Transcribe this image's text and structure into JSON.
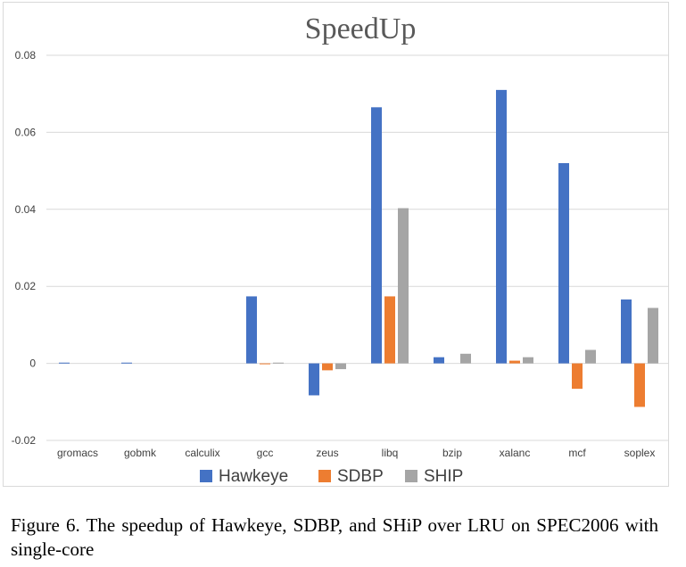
{
  "chart_data": {
    "type": "bar",
    "title": "SpeedUp",
    "xlabel": "",
    "ylabel": "",
    "categories": [
      "gromacs",
      "gobmk",
      "calculix",
      "gcc",
      "zeus",
      "libq",
      "bzip",
      "xalanc",
      "mcf",
      "soplex"
    ],
    "series": [
      {
        "name": "Hawkeye",
        "color": "#4472c4",
        "values": [
          0.0002,
          0.0002,
          0.0,
          0.0174,
          -0.0083,
          0.0665,
          0.0016,
          0.071,
          0.052,
          0.0166
        ]
      },
      {
        "name": "SDBP",
        "color": "#ed7d31",
        "values": [
          0.0,
          0.0,
          0.0,
          -0.0002,
          -0.0018,
          0.0174,
          0.0,
          0.0007,
          -0.0066,
          -0.0113
        ]
      },
      {
        "name": "SHIP",
        "color": "#a5a5a5",
        "values": [
          0.0,
          0.0,
          0.0,
          0.0002,
          -0.0015,
          0.0403,
          0.0025,
          0.0016,
          0.0035,
          0.0144
        ]
      }
    ],
    "ylim": [
      -0.02,
      0.08
    ],
    "yticks": [
      -0.02,
      0,
      0.02,
      0.04,
      0.06,
      0.08
    ],
    "ytick_labels": [
      "-0.02",
      "0",
      "0.02",
      "0.04",
      "0.06",
      "0.08"
    ],
    "grid": true,
    "legend_position": "bottom"
  },
  "caption": "Figure 6. The speedup of Hawkeye, SDBP, and SHiP over LRU on SPEC2006 with single-core"
}
